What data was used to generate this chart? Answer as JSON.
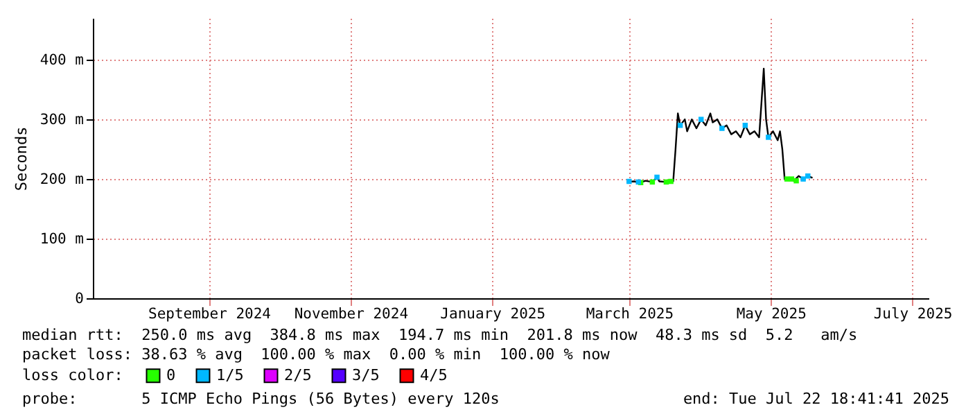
{
  "chart_data": {
    "type": "line",
    "ylabel": "Seconds",
    "legend_title": "loss color:",
    "legend": "bottom left",
    "grid": true,
    "line_style": "solid",
    "xlim": [
      "2024-07-27",
      "2025-07-22"
    ],
    "xticks": [
      {
        "value": "2024-09-15",
        "label": "September 2024"
      },
      {
        "value": "2024-11-15",
        "label": "November 2024"
      },
      {
        "value": "2025-01-15",
        "label": "January 2025"
      },
      {
        "value": "2025-03-15",
        "label": "March 2025"
      },
      {
        "value": "2025-05-15",
        "label": "May 2025"
      },
      {
        "value": "2025-07-15",
        "label": "July 2025"
      }
    ],
    "ylim": [
      0,
      470
    ],
    "yticks": [
      0,
      {
        "value": 100,
        "label": "100 m"
      },
      {
        "value": 200,
        "label": "200 m"
      },
      {
        "value": 300,
        "label": "300 m"
      },
      {
        "value": 400,
        "label": "400 m"
      }
    ],
    "series": [
      {
        "color": "#000000",
        "x": [
          "2025-03-14",
          "2025-03-17",
          "2025-03-20",
          "2025-03-22",
          "2025-03-25",
          "2025-03-27",
          "2025-03-28",
          "2025-03-31",
          "2025-04-03",
          "2025-04-04",
          "2025-04-05",
          "2025-04-06",
          "2025-04-08",
          "2025-04-09",
          "2025-04-11",
          "2025-04-13",
          "2025-04-15",
          "2025-04-17",
          "2025-04-19",
          "2025-04-20",
          "2025-04-22",
          "2025-04-24",
          "2025-04-26",
          "2025-04-28",
          "2025-04-30",
          "2025-05-02",
          "2025-05-04",
          "2025-05-06",
          "2025-05-08",
          "2025-05-10",
          "2025-05-12",
          "2025-05-13",
          "2025-05-14",
          "2025-05-16",
          "2025-05-18",
          "2025-05-19",
          "2025-05-20",
          "2025-05-21",
          "2025-05-23",
          "2025-05-25",
          "2025-05-27",
          "2025-05-29",
          "2025-05-31",
          "2025-06-02"
        ],
        "values": [
          195,
          196,
          194,
          197,
          195,
          203,
          196,
          195,
          196,
          250,
          310,
          290,
          300,
          280,
          300,
          285,
          300,
          290,
          310,
          295,
          300,
          285,
          290,
          275,
          280,
          270,
          290,
          275,
          280,
          270,
          385,
          300,
          270,
          280,
          265,
          280,
          250,
          200,
          200,
          197,
          205,
          200,
          205,
          202
        ]
      },
      {
        "name": "0",
        "type": "scatter",
        "marker": "square",
        "color": "#26ff00",
        "x": [
          "2025-03-20",
          "2025-03-25",
          "2025-03-31",
          "2025-04-02",
          "2025-05-22",
          "2025-05-24",
          "2025-05-26"
        ],
        "values": [
          194,
          195,
          195,
          196,
          200,
          200,
          197
        ]
      },
      {
        "name": "1/5",
        "type": "scatter",
        "marker": "square",
        "color": "#00b8ff",
        "x": [
          "2025-03-15",
          "2025-03-19",
          "2025-03-27",
          "2025-04-06",
          "2025-04-15",
          "2025-04-24",
          "2025-05-04",
          "2025-05-14",
          "2025-05-29",
          "2025-05-31"
        ],
        "values": [
          196,
          195,
          203,
          290,
          300,
          285,
          290,
          270,
          200,
          205
        ]
      },
      {
        "name": "2/5",
        "type": "scatter",
        "color": "#dd00ff"
      },
      {
        "name": "3/5",
        "type": "scatter",
        "color": "#5500ff"
      },
      {
        "name": "4/5",
        "type": "scatter",
        "color": "#ff0000"
      }
    ],
    "annotations": [
      "median rtt:  250.0 ms avg  384.8 ms max  194.7 ms min  201.8 ms now  48.3 ms sd  5.2   am/s",
      "packet loss: 38.63 % avg  100.00 % max  0.00 % min  100.00 % now",
      "probe:       5 ICMP Echo Pings (56 Bytes) every 120s",
      "end: Tue Jul 22 18:41:41 2025"
    ]
  }
}
